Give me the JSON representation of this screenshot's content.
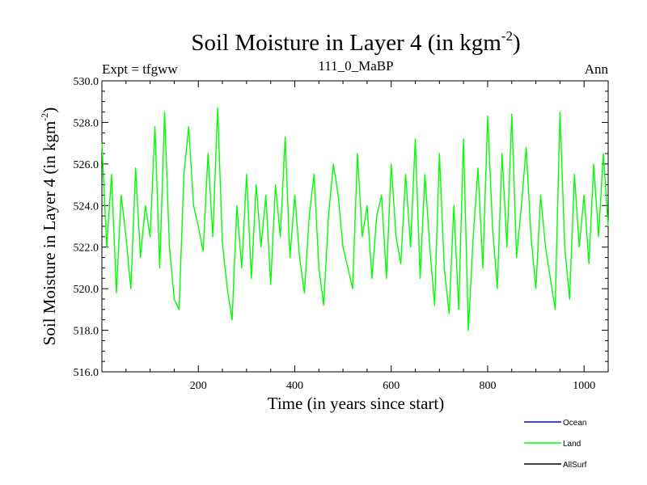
{
  "chart_data": {
    "type": "line",
    "title": "Soil Moisture in Layer 4 (in kgm",
    "title_sup": "-2",
    "title_end": ")",
    "subtitle_left": "Expt = tfgww",
    "subtitle_center": "111_0_MaBP",
    "subtitle_right": "Ann",
    "xlabel": "Time (in years since start)",
    "ylabel": "Soil Moisture in Layer 4 (in kgm",
    "ylabel_sup": "-2",
    "ylabel_end": ")",
    "xlim": [
      0,
      1050
    ],
    "ylim": [
      516.0,
      530.0
    ],
    "xticks": [
      200,
      400,
      600,
      800,
      1000
    ],
    "xtick_labels": [
      "200",
      "400",
      "600",
      "800",
      "1000"
    ],
    "yticks": [
      516,
      518,
      520,
      522,
      524,
      526,
      528,
      530
    ],
    "ytick_labels": [
      "516.0",
      "518.0",
      "520.0",
      "522.0",
      "524.0",
      "526.0",
      "528.0",
      "530.0"
    ],
    "legend_position": "bottom-right, below plot",
    "series": [
      {
        "name": "Ocean",
        "color": "#0000ff",
        "x": [],
        "values": []
      },
      {
        "name": "Land",
        "color": "#00ff00",
        "x": [
          0,
          10,
          20,
          30,
          40,
          50,
          60,
          70,
          80,
          90,
          100,
          110,
          120,
          130,
          140,
          150,
          160,
          170,
          180,
          190,
          200,
          210,
          220,
          230,
          240,
          250,
          260,
          270,
          280,
          290,
          300,
          310,
          320,
          330,
          340,
          350,
          360,
          370,
          380,
          390,
          400,
          410,
          420,
          430,
          440,
          450,
          460,
          470,
          480,
          490,
          500,
          510,
          520,
          530,
          540,
          550,
          560,
          570,
          580,
          590,
          600,
          610,
          620,
          630,
          640,
          650,
          660,
          670,
          680,
          690,
          700,
          710,
          720,
          730,
          740,
          750,
          760,
          770,
          780,
          790,
          800,
          810,
          820,
          830,
          840,
          850,
          860,
          870,
          880,
          890,
          900,
          910,
          920,
          930,
          940,
          950,
          960,
          970,
          980,
          990,
          1000,
          1010,
          1020,
          1030,
          1040,
          1050
        ],
        "values": [
          527.0,
          522.0,
          525.5,
          519.8,
          524.5,
          522.5,
          520.0,
          525.8,
          521.5,
          524.0,
          522.5,
          527.8,
          521.0,
          528.5,
          522.0,
          519.5,
          519.0,
          525.5,
          527.8,
          524.0,
          523.0,
          521.8,
          526.5,
          522.5,
          528.7,
          522.2,
          520.0,
          518.5,
          524.0,
          521.0,
          525.5,
          520.5,
          525.0,
          522.0,
          524.5,
          520.2,
          525.0,
          522.5,
          527.3,
          521.5,
          524.5,
          521.5,
          519.8,
          523.5,
          525.5,
          521.0,
          519.2,
          523.5,
          526.0,
          524.5,
          522.0,
          521.0,
          520.0,
          526.5,
          522.5,
          524.0,
          520.5,
          523.5,
          524.5,
          520.5,
          526.0,
          522.5,
          521.2,
          525.5,
          522.0,
          527.2,
          520.5,
          525.5,
          522.0,
          519.2,
          526.5,
          521.0,
          518.8,
          524.0,
          519.0,
          527.2,
          518.0,
          522.5,
          525.8,
          521.0,
          528.3,
          523.0,
          520.0,
          526.5,
          522.0,
          528.4,
          521.5,
          524.0,
          526.8,
          522.5,
          520.0,
          524.5,
          522.0,
          520.5,
          519.0,
          528.5,
          522.0,
          519.5,
          525.5,
          522.0,
          524.5,
          521.2,
          526.0,
          522.5,
          526.5,
          523.0
        ]
      },
      {
        "name": "AllSurf",
        "color": "#000000",
        "x": [],
        "values": []
      }
    ]
  }
}
